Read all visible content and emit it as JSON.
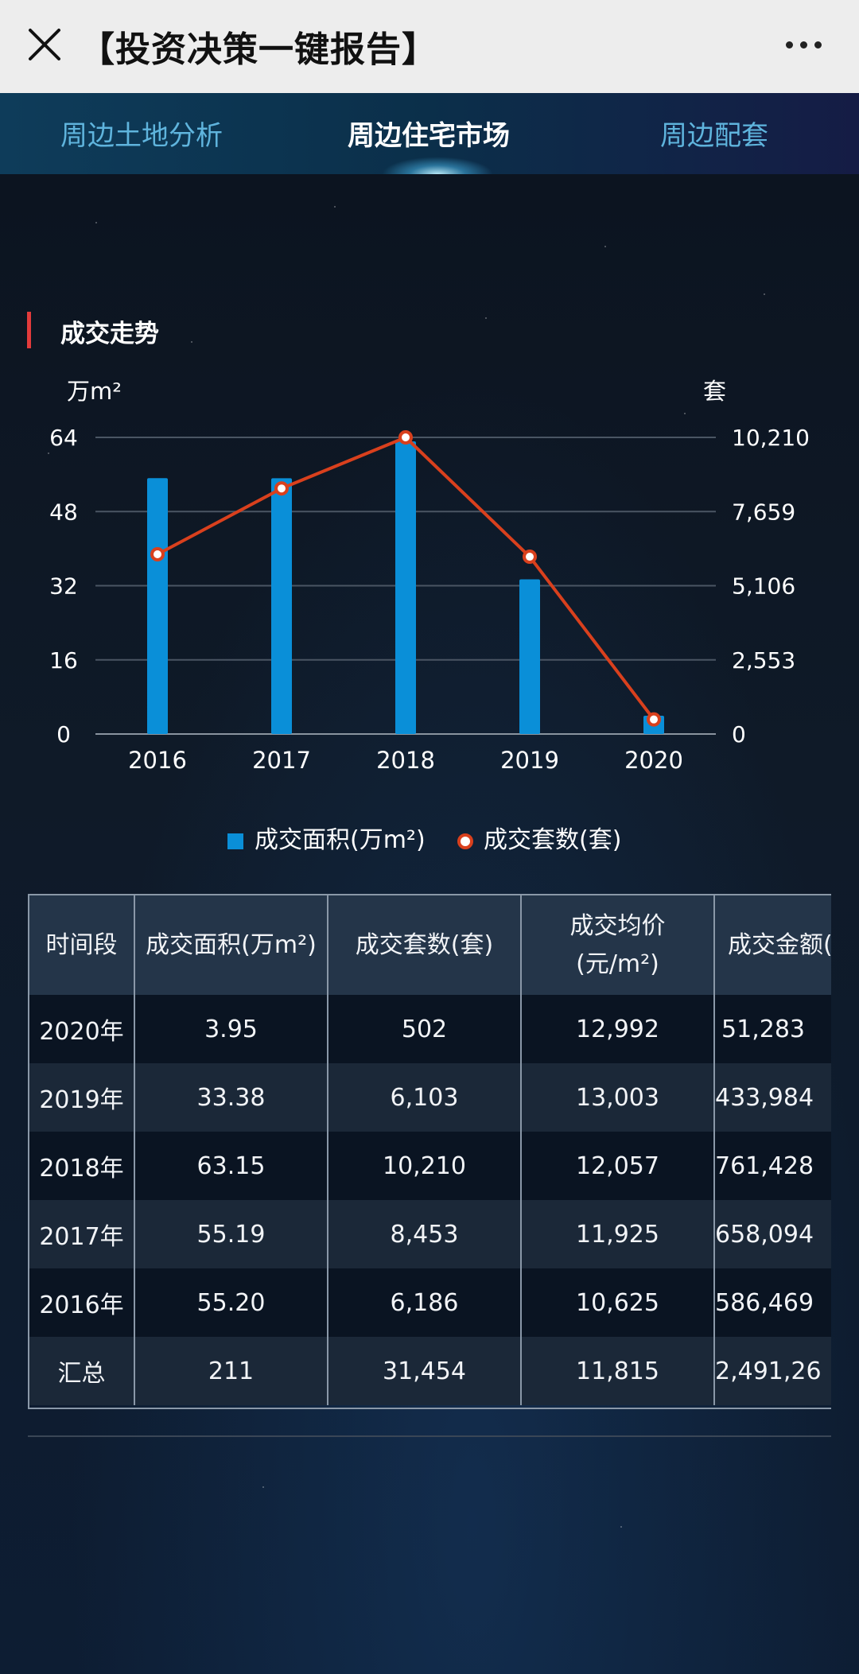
{
  "app": {
    "title": "【投资决策一键报告】",
    "icons": {
      "close": "close-icon",
      "more": "more-icon"
    }
  },
  "tabs": [
    {
      "label": "周边土地分析",
      "active": false
    },
    {
      "label": "周边住宅市场",
      "active": true
    },
    {
      "label": "周边配套",
      "active": false
    }
  ],
  "section": {
    "title": "成交走势"
  },
  "chart_data": {
    "type": "bar",
    "categories": [
      "2016",
      "2017",
      "2018",
      "2019",
      "2020"
    ],
    "left_axis": {
      "unit": "万m²",
      "ticks": [
        "0",
        "16",
        "32",
        "48",
        "64"
      ],
      "ylim": [
        0,
        64
      ]
    },
    "right_axis": {
      "unit": "套",
      "ticks": [
        "0",
        "2,553",
        "5,106",
        "7,659",
        "10,210"
      ],
      "ylim": [
        0,
        10210
      ]
    },
    "series": [
      {
        "name": "成交面积(万m²)",
        "type": "bar",
        "axis": "left",
        "color": "#0a8fd8",
        "values": [
          55.2,
          55.19,
          63.15,
          33.38,
          3.95
        ]
      },
      {
        "name": "成交套数(套)",
        "type": "line",
        "axis": "right",
        "color": "#d9401d",
        "values": [
          6186,
          8453,
          10210,
          6103,
          502
        ]
      }
    ],
    "grid": true,
    "legend": "bottom-center"
  },
  "table": {
    "headers": [
      "时间段",
      "成交面积(万m²)",
      "成交套数(套)",
      "成交均价\n(元/m²)",
      "成交金额("
    ],
    "rows": [
      [
        "2020年",
        "3.95",
        "502",
        "12,992",
        "51,283"
      ],
      [
        "2019年",
        "33.38",
        "6,103",
        "13,003",
        "433,984"
      ],
      [
        "2018年",
        "63.15",
        "10,210",
        "12,057",
        "761,428"
      ],
      [
        "2017年",
        "55.19",
        "8,453",
        "11,925",
        "658,094"
      ],
      [
        "2016年",
        "55.20",
        "6,186",
        "10,625",
        "586,469"
      ],
      [
        "汇总",
        "211",
        "31,454",
        "11,815",
        "2,491,26"
      ]
    ]
  }
}
